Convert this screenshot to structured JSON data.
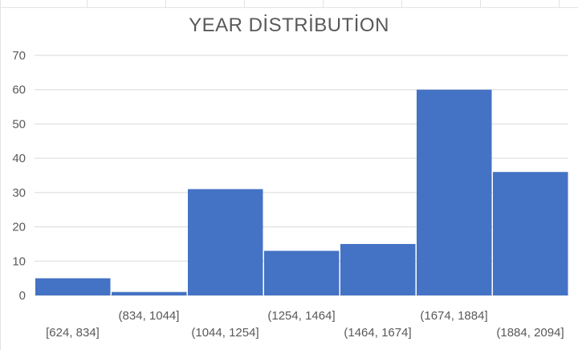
{
  "chart_data": {
    "type": "bar",
    "title": "YEAR DİSTRİBUTİON",
    "categories": [
      "[624, 834]",
      "(834, 1044]",
      "(1044, 1254]",
      "(1254, 1464]",
      "(1464, 1674]",
      "(1674, 1884]",
      "(1884, 2094]"
    ],
    "values": [
      5,
      1,
      31,
      13,
      15,
      60,
      36
    ],
    "ylim": [
      0,
      70
    ],
    "yticks": [
      0,
      10,
      20,
      30,
      40,
      50,
      60,
      70
    ],
    "grid": true,
    "xlabel": "",
    "ylabel": "",
    "bar_color": "#4472C4",
    "grid_color": "#d9d9d9",
    "text_color": "#595959"
  }
}
